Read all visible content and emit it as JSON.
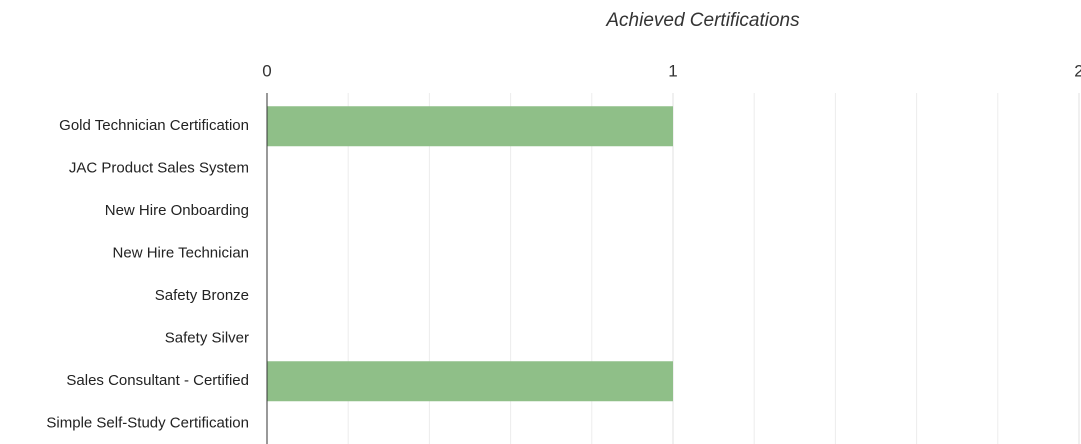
{
  "chart_data": {
    "type": "bar",
    "orientation": "horizontal",
    "title": "Achieved Certifications",
    "categories": [
      "Gold Technician Certification",
      "JAC Product Sales System",
      "New Hire Onboarding",
      "New Hire Technician",
      "Safety Bronze",
      "Safety Silver",
      "Sales Consultant - Certified",
      "Simple Self-Study Certification"
    ],
    "values": [
      1,
      0,
      0,
      0,
      0,
      0,
      1,
      0
    ],
    "color": "#8fbf88",
    "xlim": [
      0,
      2
    ],
    "xticks": [
      0,
      1,
      2
    ],
    "grid": true
  }
}
